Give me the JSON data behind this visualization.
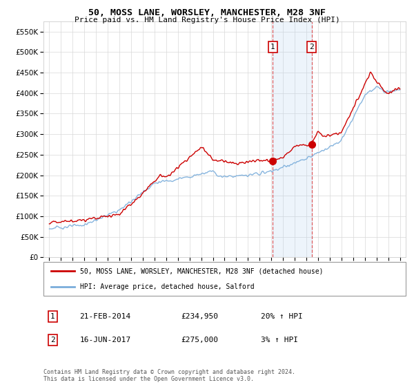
{
  "title": "50, MOSS LANE, WORSLEY, MANCHESTER, M28 3NF",
  "subtitle": "Price paid vs. HM Land Registry's House Price Index (HPI)",
  "legend_line1": "50, MOSS LANE, WORSLEY, MANCHESTER, M28 3NF (detached house)",
  "legend_line2": "HPI: Average price, detached house, Salford",
  "annotation1_date": "21-FEB-2014",
  "annotation1_price": "£234,950",
  "annotation1_hpi": "20% ↑ HPI",
  "annotation1_year": 2014.13,
  "annotation1_value": 234950,
  "annotation2_date": "16-JUN-2017",
  "annotation2_price": "£275,000",
  "annotation2_hpi": "3% ↑ HPI",
  "annotation2_year": 2017.46,
  "annotation2_value": 275000,
  "red_color": "#cc0000",
  "blue_color": "#7aaddb",
  "background_color": "#ffffff",
  "grid_color": "#d8d8d8",
  "highlight_color": "#ddeeff",
  "footer": "Contains HM Land Registry data © Crown copyright and database right 2024.\nThis data is licensed under the Open Government Licence v3.0.",
  "ylim": [
    0,
    575000
  ],
  "yticks": [
    0,
    50000,
    100000,
    150000,
    200000,
    250000,
    300000,
    350000,
    400000,
    450000,
    500000,
    550000
  ],
  "xlim_start": 1994.5,
  "xlim_end": 2025.5
}
